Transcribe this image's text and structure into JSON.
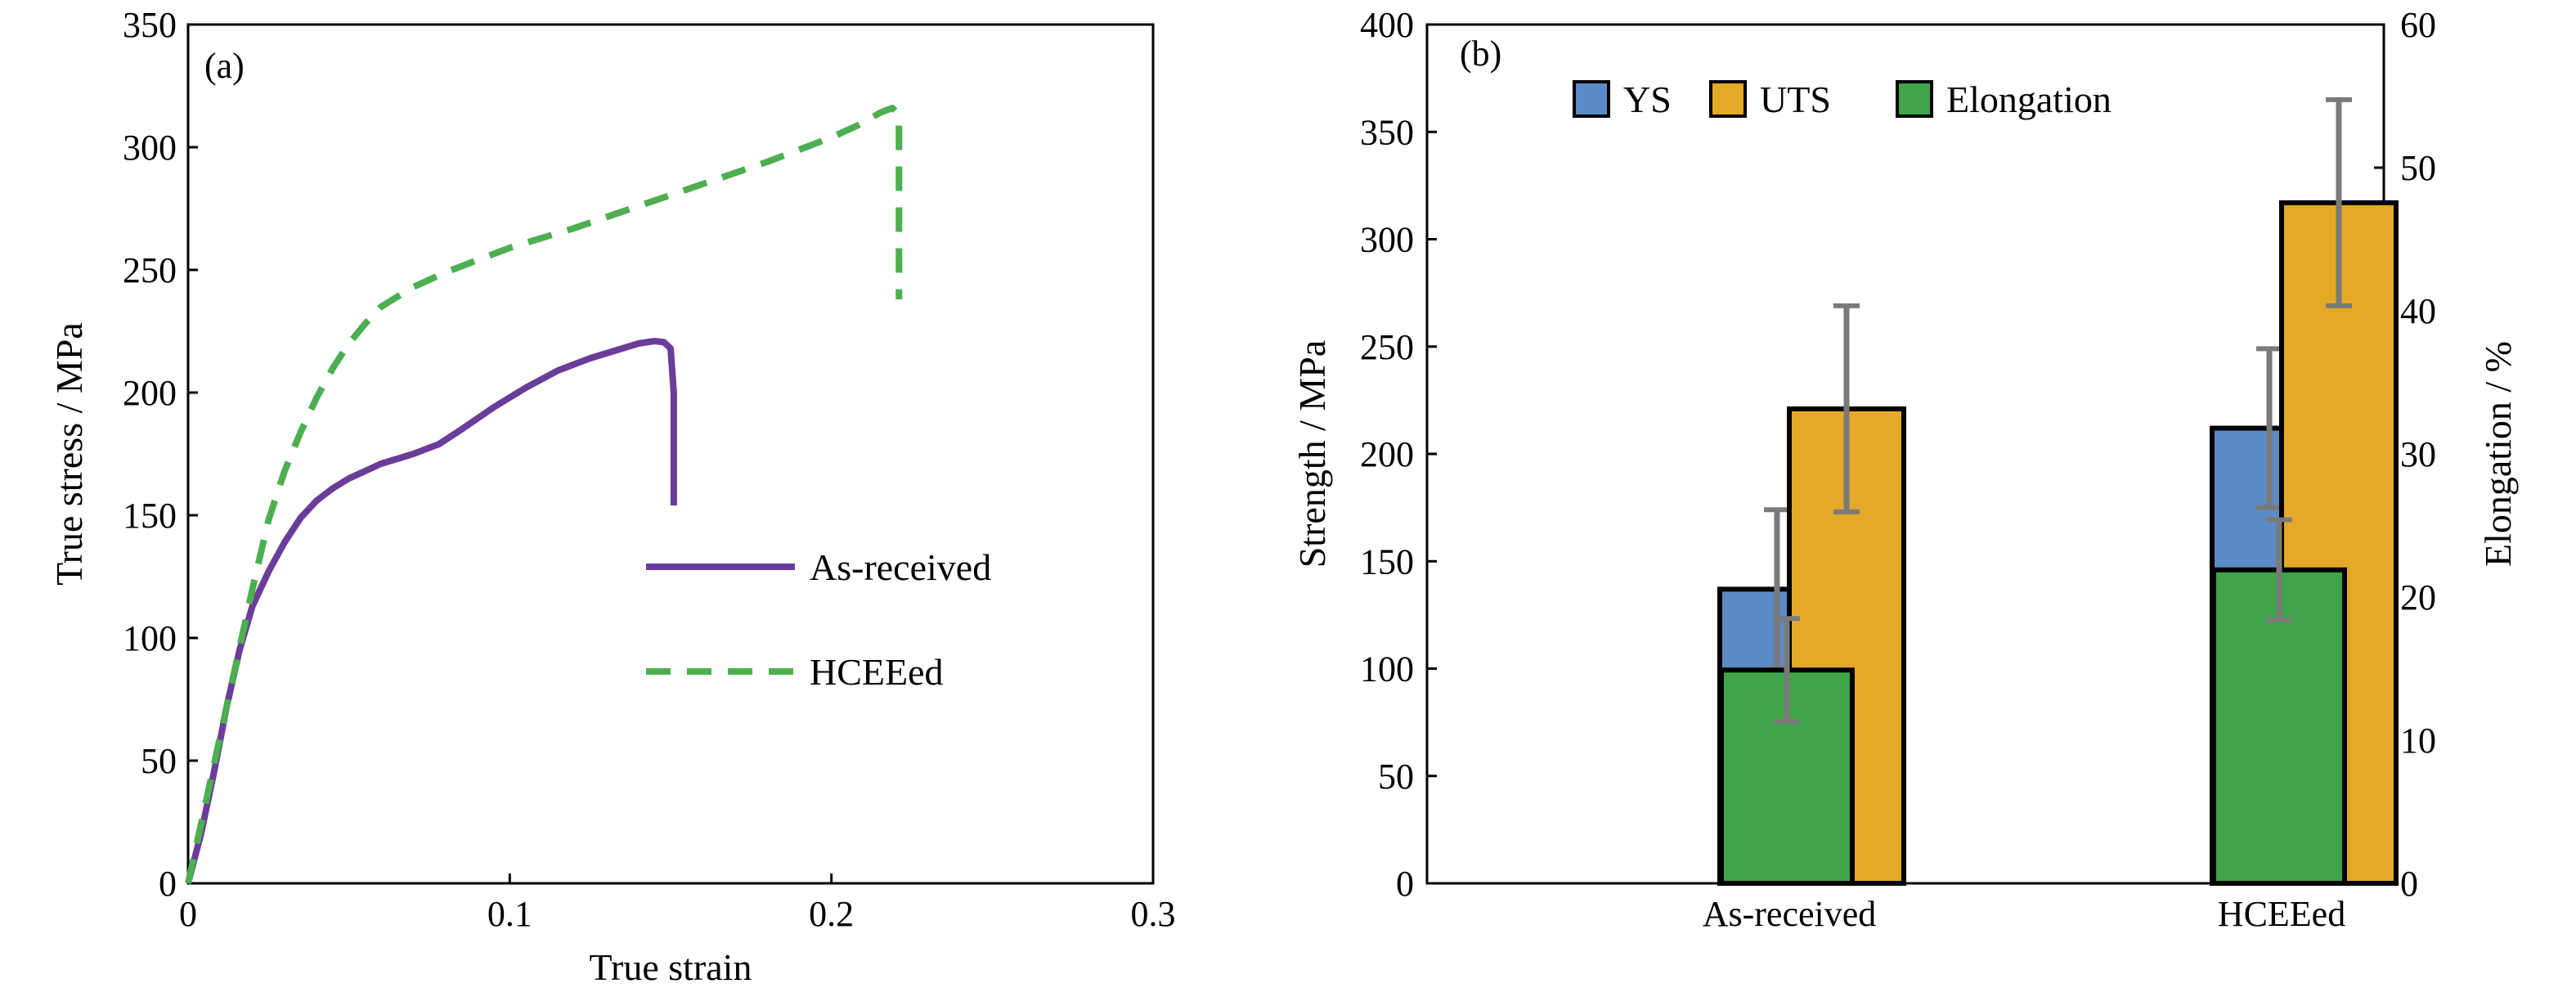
{
  "chart_data": [
    {
      "panel_label": "(a)",
      "type": "line",
      "xlabel": "True strain",
      "ylabel": "True stress / MPa",
      "xlim": [
        0,
        0.3
      ],
      "ylim": [
        0,
        350
      ],
      "xticks": [
        0,
        0.1,
        0.2,
        0.3
      ],
      "yticks": [
        0,
        50,
        100,
        150,
        200,
        250,
        300,
        350
      ],
      "xtick_labels": [
        "0",
        "0.1",
        "0.2",
        "0.3"
      ],
      "ytick_labels": [
        "0",
        "50",
        "100",
        "150",
        "200",
        "250",
        "300",
        "350"
      ],
      "grid": false,
      "legend_position": "center-right",
      "series": [
        {
          "name": "As-received",
          "color": "#6a3d9a",
          "style": "solid",
          "points": [
            [
              0,
              0
            ],
            [
              0.004,
              20
            ],
            [
              0.008,
              45
            ],
            [
              0.012,
              72
            ],
            [
              0.016,
              95
            ],
            [
              0.02,
              113
            ],
            [
              0.025,
              127
            ],
            [
              0.03,
              139
            ],
            [
              0.035,
              149
            ],
            [
              0.04,
              156
            ],
            [
              0.045,
              161
            ],
            [
              0.05,
              165
            ],
            [
              0.055,
              168
            ],
            [
              0.06,
              171
            ],
            [
              0.07,
              175
            ],
            [
              0.078,
              179
            ],
            [
              0.085,
              185
            ],
            [
              0.095,
              194
            ],
            [
              0.105,
              202
            ],
            [
              0.115,
              209
            ],
            [
              0.125,
              214
            ],
            [
              0.135,
              218
            ],
            [
              0.14,
              220
            ],
            [
              0.145,
              221
            ],
            [
              0.148,
              220.5
            ],
            [
              0.15,
              218
            ],
            [
              0.151,
              200
            ],
            [
              0.151,
              175
            ],
            [
              0.151,
              154
            ]
          ]
        },
        {
          "name": "HCEEed",
          "color": "#4caf50",
          "style": "dashed",
          "points": [
            [
              0,
              0
            ],
            [
              0.005,
              30
            ],
            [
              0.01,
              60
            ],
            [
              0.015,
              90
            ],
            [
              0.02,
              120
            ],
            [
              0.025,
              148
            ],
            [
              0.03,
              168
            ],
            [
              0.035,
              184
            ],
            [
              0.04,
              198
            ],
            [
              0.045,
              210
            ],
            [
              0.05,
              220
            ],
            [
              0.055,
              228
            ],
            [
              0.06,
              235
            ],
            [
              0.07,
              243
            ],
            [
              0.08,
              249
            ],
            [
              0.09,
              254
            ],
            [
              0.1,
              259
            ],
            [
              0.12,
              267
            ],
            [
              0.14,
              276
            ],
            [
              0.16,
              285
            ],
            [
              0.18,
              294
            ],
            [
              0.2,
              304
            ],
            [
              0.21,
              310
            ],
            [
              0.215,
              314
            ],
            [
              0.219,
              316
            ],
            [
              0.221,
              313
            ],
            [
              0.221,
              295
            ],
            [
              0.221,
              265
            ],
            [
              0.221,
              238
            ]
          ]
        }
      ]
    },
    {
      "panel_label": "(b)",
      "type": "bar",
      "categories": [
        "As-received",
        "HCEEed"
      ],
      "ylabel": "Strength / MPa",
      "y2label": "Elongation / %",
      "ylim": [
        0,
        400
      ],
      "y2lim": [
        0,
        60
      ],
      "yticks": [
        0,
        50,
        100,
        150,
        200,
        250,
        300,
        350,
        400
      ],
      "y2ticks": [
        0,
        10,
        20,
        30,
        40,
        50,
        60
      ],
      "ytick_labels": [
        "0",
        "50",
        "100",
        "150",
        "200",
        "250",
        "300",
        "350",
        "400"
      ],
      "y2tick_labels": [
        "0",
        "10",
        "20",
        "30",
        "40",
        "50",
        "60"
      ],
      "grid": false,
      "legend_position": "top",
      "series": [
        {
          "name": "YS",
          "axis": "left",
          "color": "#5b8bc6",
          "values": [
            137,
            212
          ],
          "errors": [
            37,
            37
          ]
        },
        {
          "name": "UTS",
          "axis": "left",
          "color": "#e5a928",
          "values": [
            221,
            317
          ],
          "errors": [
            48,
            48
          ]
        },
        {
          "name": "Elongation",
          "axis": "right",
          "color": "#3fa44a",
          "values": [
            14.9,
            21.9
          ],
          "errors": [
            3.6,
            3.5
          ]
        }
      ],
      "errorbar_color": "#7a7a7a"
    }
  ]
}
